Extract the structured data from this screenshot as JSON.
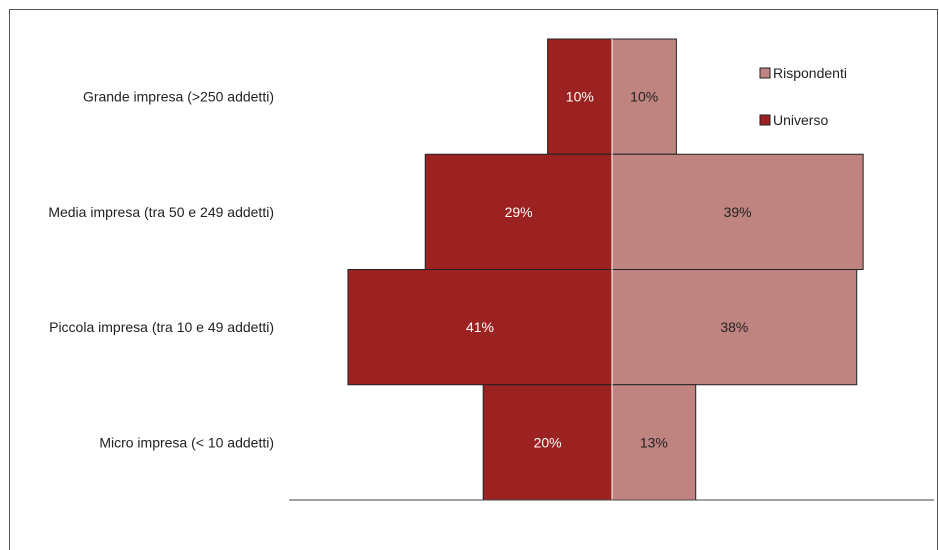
{
  "chart_data": {
    "type": "bar",
    "orientation": "horizontal-butterfly",
    "title": "",
    "categories": [
      "Grande impresa (>250 addetti)",
      "Media impresa (tra 50 e 249 addetti)",
      "Piccola impresa (tra 10 e 49 addetti)",
      "Micro impresa (< 10 addetti)"
    ],
    "series": [
      {
        "name": "Universo",
        "side": "left",
        "color": "#9c2121",
        "values": [
          10,
          29,
          41,
          20
        ],
        "labels": [
          "10%",
          "29%",
          "41%",
          "20%"
        ]
      },
      {
        "name": "Rispondenti",
        "side": "right",
        "color": "#c08480",
        "values": [
          10,
          39,
          38,
          13
        ],
        "labels": [
          "10%",
          "39%",
          "38%",
          "13%"
        ]
      }
    ],
    "legend": {
      "position": "top-right",
      "entries": [
        {
          "name": "Rispondenti",
          "color": "#c08480"
        },
        {
          "name": "Universo",
          "color": "#9c2121"
        }
      ]
    },
    "xlabel": "",
    "ylabel": "",
    "xlim": [
      0,
      43
    ],
    "grid": false
  }
}
